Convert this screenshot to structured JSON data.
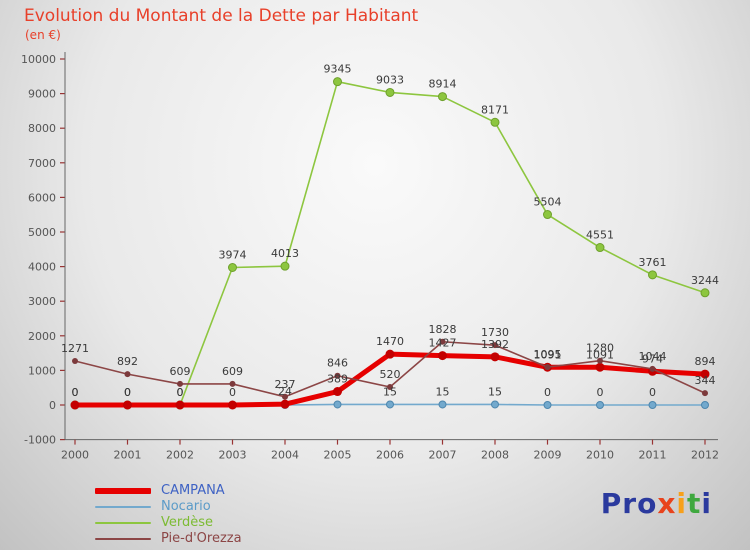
{
  "colors": {
    "title": "#e8402a",
    "value_label": "#3a3a3a",
    "axis": {
      "line": "#666666",
      "tick": "#993333",
      "label": "#555555"
    }
  },
  "logo": {
    "text": "Proxiti",
    "letters": [
      {
        "ch": "P",
        "color": "#2b3a9e"
      },
      {
        "ch": "r",
        "color": "#2b3a9e"
      },
      {
        "ch": "o",
        "color": "#2b3a9e"
      },
      {
        "ch": "x",
        "color": "#e8431c"
      },
      {
        "ch": "i",
        "color": "#f7a01b"
      },
      {
        "ch": "t",
        "color": "#3fa83f"
      },
      {
        "ch": "i",
        "color": "#2b3a9e"
      }
    ]
  },
  "chart_data": {
    "type": "line",
    "title": "Evolution du Montant de la Dette par Habitant",
    "subtitle": "(en €)",
    "xlabel": "",
    "ylabel": "",
    "x": [
      2000,
      2001,
      2002,
      2003,
      2004,
      2005,
      2006,
      2007,
      2008,
      2009,
      2010,
      2011,
      2012
    ],
    "ylim": [
      -1000,
      10000
    ],
    "ytick_step": 1000,
    "grid": false,
    "legend_position": "bottom-left",
    "draw_order": [
      1,
      2,
      0,
      3
    ],
    "series": [
      {
        "name": "CAMPANA",
        "color": "#e60000",
        "marker_color": "#c40000",
        "legend_text_color": "#3e62c4",
        "width": 5,
        "marker": 4.5,
        "values": [
          0,
          0,
          0,
          0,
          24,
          389,
          1470,
          1427,
          1392,
          1091,
          1091,
          974,
          894
        ],
        "labels": [
          "0",
          "0",
          "0",
          "0",
          "24",
          "389",
          "1470",
          "1427",
          "1392",
          "1091",
          "1091",
          "974",
          "894"
        ]
      },
      {
        "name": "Nocario",
        "color": "#73a9cd",
        "marker_color": "#73a9cd",
        "marker_stroke": "#4d86ad",
        "legend_text_color": "#5b9bc8",
        "width": 1.6,
        "marker": 3.5,
        "values": [
          0,
          0,
          0,
          0,
          0,
          15,
          15,
          15,
          15,
          0,
          0,
          0,
          0
        ],
        "labels": [
          null,
          null,
          null,
          null,
          null,
          null,
          "15",
          "15",
          "15",
          "0",
          "0",
          "0",
          null
        ]
      },
      {
        "name": "Verdèse",
        "color": "#8dc63f",
        "marker_color": "#8dc63f",
        "marker_stroke": "#6ea02c",
        "legend_text_color": "#7cbb33",
        "width": 1.6,
        "marker": 4,
        "values": [
          0,
          0,
          0,
          3974,
          4013,
          9345,
          9033,
          8914,
          8171,
          5504,
          4551,
          3761,
          3244
        ],
        "labels": [
          "0",
          "0",
          "0",
          "3974",
          "4013",
          "9345",
          "9033",
          "8914",
          "8171",
          "5504",
          "4551",
          "3761",
          "3244"
        ]
      },
      {
        "name": "Pie-d'Orezza",
        "color": "#8c4646",
        "marker_color": "#7c3a3c",
        "legend_text_color": "#8c4646",
        "width": 1.6,
        "marker": 3,
        "values": [
          1271,
          892,
          609,
          609,
          237,
          846,
          520,
          1828,
          1730,
          1095,
          1280,
          1044,
          344
        ],
        "labels": [
          "1271",
          "892",
          "609",
          "609",
          "237",
          "846",
          "520",
          "1828",
          "1730",
          "1095",
          "1280",
          "1044",
          "344"
        ]
      }
    ]
  }
}
